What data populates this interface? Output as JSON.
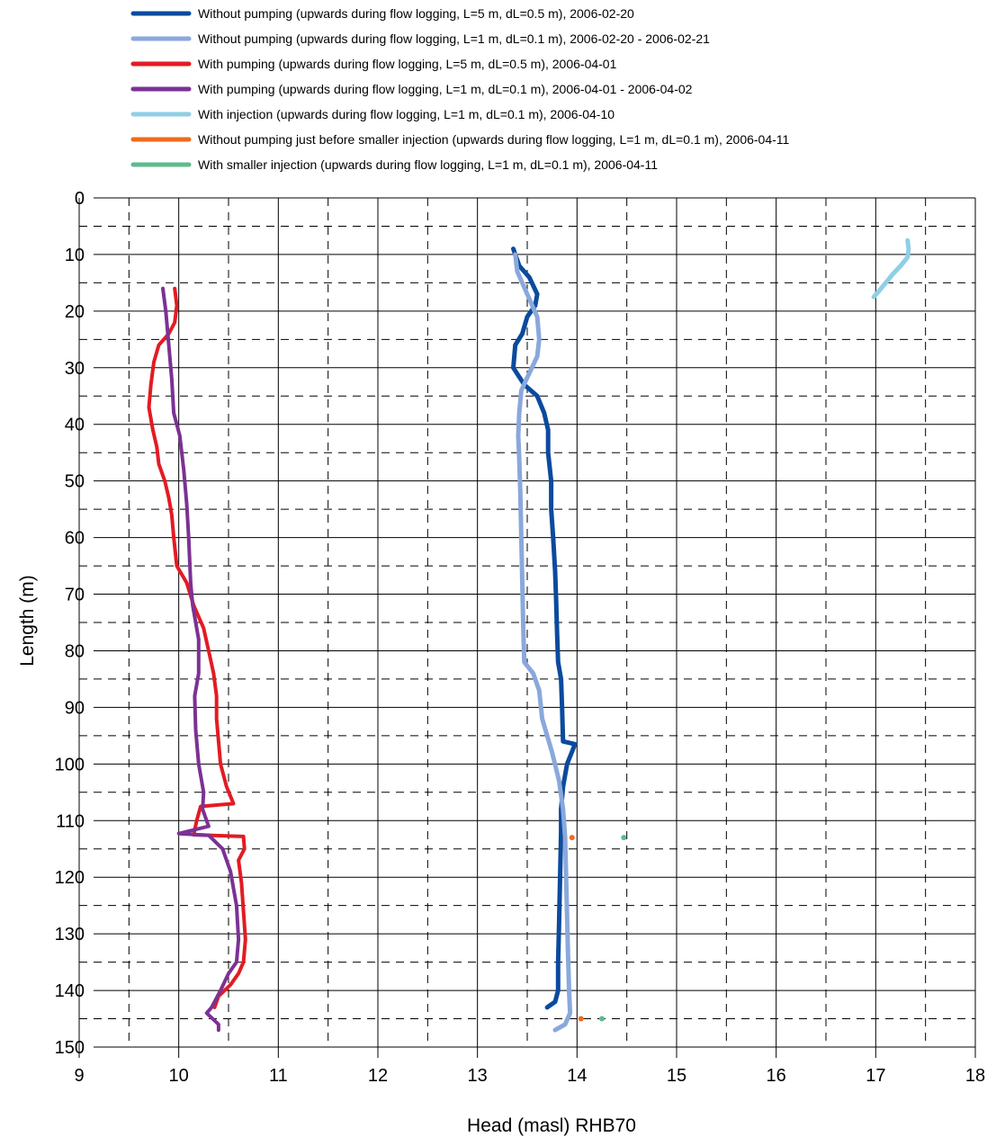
{
  "chart_data": {
    "type": "line",
    "xlabel": "Head (masl) RHB70",
    "ylabel": "Length (m)",
    "xlim": [
      9,
      18
    ],
    "ylim": [
      0,
      150
    ],
    "y_inverted": true,
    "x_ticks": [
      9,
      10,
      11,
      12,
      13,
      14,
      15,
      16,
      17,
      18
    ],
    "y_ticks": [
      0,
      10,
      20,
      30,
      40,
      50,
      60,
      70,
      80,
      90,
      100,
      110,
      120,
      130,
      140,
      150
    ],
    "grid": "major solid, minor dashed",
    "legend_position": "top",
    "series": [
      {
        "name": "Without pumping (upwards during flow logging, L=5 m, dL=0.5 m), 2006-02-20",
        "color": "#0b4a9e",
        "width": 5,
        "points": [
          [
            13.36,
            9
          ],
          [
            13.42,
            12
          ],
          [
            13.52,
            14
          ],
          [
            13.6,
            17
          ],
          [
            13.58,
            19
          ],
          [
            13.5,
            21
          ],
          [
            13.45,
            24
          ],
          [
            13.38,
            26
          ],
          [
            13.36,
            30
          ],
          [
            13.47,
            33
          ],
          [
            13.6,
            35
          ],
          [
            13.67,
            38
          ],
          [
            13.71,
            41
          ],
          [
            13.71,
            45
          ],
          [
            13.74,
            50
          ],
          [
            13.74,
            55
          ],
          [
            13.76,
            60
          ],
          [
            13.78,
            66
          ],
          [
            13.79,
            71
          ],
          [
            13.8,
            77
          ],
          [
            13.81,
            82
          ],
          [
            13.84,
            85
          ],
          [
            13.85,
            90
          ],
          [
            13.86,
            96
          ],
          [
            13.98,
            96.5
          ],
          [
            13.9,
            100
          ],
          [
            13.86,
            104
          ],
          [
            13.84,
            108
          ],
          [
            13.84,
            112
          ],
          [
            13.83,
            120
          ],
          [
            13.82,
            128
          ],
          [
            13.81,
            135
          ],
          [
            13.81,
            140
          ],
          [
            13.78,
            142
          ],
          [
            13.7,
            143
          ]
        ]
      },
      {
        "name": "Without pumping (upwards during flow logging, L=1 m, dL=0.1 m), 2006-02-20 - 2006-02-21",
        "color": "#8aa8dc",
        "width": 5,
        "points": [
          [
            13.38,
            10
          ],
          [
            13.4,
            13
          ],
          [
            13.5,
            17
          ],
          [
            13.6,
            21
          ],
          [
            13.62,
            25
          ],
          [
            13.6,
            28
          ],
          [
            13.52,
            31
          ],
          [
            13.44,
            34
          ],
          [
            13.42,
            38
          ],
          [
            13.41,
            42
          ],
          [
            13.42,
            46
          ],
          [
            13.43,
            52
          ],
          [
            13.44,
            60
          ],
          [
            13.45,
            68
          ],
          [
            13.46,
            76
          ],
          [
            13.47,
            82
          ],
          [
            13.56,
            84
          ],
          [
            13.62,
            87
          ],
          [
            13.65,
            92
          ],
          [
            13.75,
            98
          ],
          [
            13.82,
            103
          ],
          [
            13.86,
            108
          ],
          [
            13.88,
            113
          ],
          [
            13.89,
            120
          ],
          [
            13.9,
            127
          ],
          [
            13.91,
            134
          ],
          [
            13.92,
            140
          ],
          [
            13.93,
            144
          ],
          [
            13.88,
            146
          ],
          [
            13.78,
            147
          ]
        ]
      },
      {
        "name": "With pumping (upwards during flow logging, L=5 m, dL=0.5 m), 2006-04-01",
        "color": "#e31b23",
        "width": 4,
        "points": [
          [
            9.96,
            16
          ],
          [
            9.98,
            19
          ],
          [
            9.96,
            22
          ],
          [
            9.9,
            24
          ],
          [
            9.8,
            26
          ],
          [
            9.75,
            29
          ],
          [
            9.72,
            33
          ],
          [
            9.7,
            37
          ],
          [
            9.74,
            41
          ],
          [
            9.78,
            44
          ],
          [
            9.8,
            47
          ],
          [
            9.86,
            50
          ],
          [
            9.9,
            53
          ],
          [
            9.93,
            56
          ],
          [
            9.95,
            60
          ],
          [
            9.98,
            65
          ],
          [
            10.08,
            68
          ],
          [
            10.15,
            72
          ],
          [
            10.25,
            76
          ],
          [
            10.3,
            80
          ],
          [
            10.35,
            84
          ],
          [
            10.38,
            88
          ],
          [
            10.38,
            92
          ],
          [
            10.4,
            96
          ],
          [
            10.42,
            100
          ],
          [
            10.48,
            104
          ],
          [
            10.55,
            107
          ],
          [
            10.22,
            107.5
          ],
          [
            10.18,
            110
          ],
          [
            10.15,
            112.5
          ],
          [
            10.65,
            112.8
          ],
          [
            10.66,
            115
          ],
          [
            10.6,
            117
          ],
          [
            10.63,
            121
          ],
          [
            10.65,
            126
          ],
          [
            10.67,
            131
          ],
          [
            10.65,
            135
          ],
          [
            10.6,
            137
          ],
          [
            10.52,
            139
          ],
          [
            10.4,
            141
          ],
          [
            10.36,
            143
          ]
        ]
      },
      {
        "name": "With pumping (upwards during flow logging, L=1 m, dL=0.1 m), 2006-04-01 - 2006-04-02",
        "color": "#7b3294",
        "width": 4,
        "points": [
          [
            9.84,
            16
          ],
          [
            9.87,
            20
          ],
          [
            9.9,
            26
          ],
          [
            9.93,
            32
          ],
          [
            9.95,
            38
          ],
          [
            10.01,
            42
          ],
          [
            10.05,
            48
          ],
          [
            10.08,
            54
          ],
          [
            10.1,
            60
          ],
          [
            10.12,
            68
          ],
          [
            10.14,
            72
          ],
          [
            10.2,
            78
          ],
          [
            10.2,
            84
          ],
          [
            10.16,
            88
          ],
          [
            10.17,
            94
          ],
          [
            10.2,
            100
          ],
          [
            10.25,
            105
          ],
          [
            10.24,
            108
          ],
          [
            10.3,
            111
          ],
          [
            10.0,
            112.3
          ],
          [
            10.3,
            112.6
          ],
          [
            10.44,
            115
          ],
          [
            10.52,
            119
          ],
          [
            10.58,
            125
          ],
          [
            10.6,
            131
          ],
          [
            10.58,
            135
          ],
          [
            10.5,
            137
          ],
          [
            10.42,
            140
          ],
          [
            10.33,
            143
          ],
          [
            10.28,
            144
          ],
          [
            10.4,
            146
          ],
          [
            10.4,
            147
          ]
        ]
      },
      {
        "name": "With injection (upwards during flow logging, L=1 m, dL=0.1 m), 2006-04-10",
        "color": "#8fcfe6",
        "width": 5,
        "points": [
          [
            17.32,
            7.5
          ],
          [
            17.33,
            9
          ],
          [
            17.32,
            10.5
          ],
          [
            17.25,
            12
          ],
          [
            17.17,
            13.5
          ],
          [
            17.1,
            15
          ],
          [
            17.03,
            16.5
          ],
          [
            16.98,
            17.5
          ]
        ]
      },
      {
        "name": "Without pumping just before smaller injection (upwards during flow logging, L=1 m, dL=0.1 m), 2006-04-11",
        "color": "#f06a1e",
        "width": 3,
        "points": [
          [
            13.95,
            113
          ],
          [
            14.04,
            145
          ]
        ]
      },
      {
        "name": "With smaller injection (upwards during flow logging, L=1 m, dL=0.1 m), 2006-04-11",
        "color": "#5fba8e",
        "width": 3,
        "points": [
          [
            14.47,
            113
          ],
          [
            14.25,
            145
          ]
        ]
      }
    ]
  }
}
